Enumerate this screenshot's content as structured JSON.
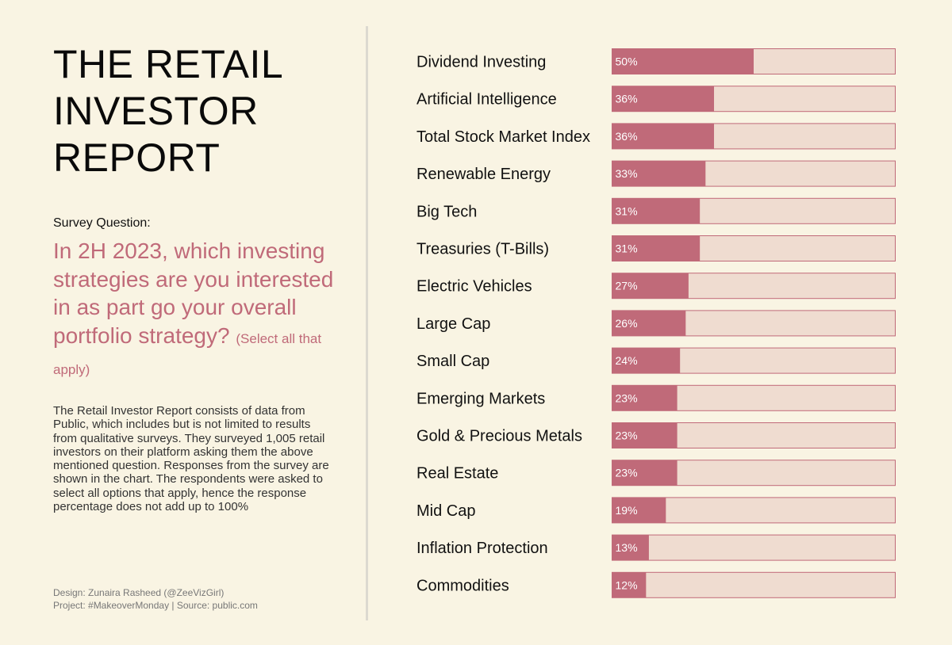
{
  "header": {
    "title_lines": [
      "THE RETAIL",
      "INVESTOR",
      "REPORT"
    ]
  },
  "survey": {
    "label": "Survey Question:",
    "question": "In 2H 2023, which investing strategies are you interested in as part go your overall portfolio strategy?",
    "note": "(Select all that apply)"
  },
  "description": "The Retail Investor Report consists of data from Public, which includes but is not limited to results from qualitative surveys. They surveyed 1,005 retail investors on their platform asking them the above mentioned question. Responses from the survey are shown in the chart. The respondents were asked to select all options that apply, hence the response percentage does not add up to 100%",
  "credits": {
    "design": "Design: Zunaira Rasheed (@ZeeVizGirl)",
    "project": "Project: #MakeoverMonday | Source: public.com"
  },
  "colors": {
    "bar_fill": "#c06a79",
    "bar_track": "#efdcd0",
    "bar_border": "#c06a79",
    "question_text": "#c06a79"
  },
  "chart_data": {
    "type": "bar",
    "orientation": "horizontal",
    "categories": [
      "Dividend Investing",
      "Artificial Intelligence",
      "Total Stock Market Index",
      "Renewable Energy",
      "Big Tech",
      "Treasuries (T-Bills)",
      "Electric Vehicles",
      "Large Cap",
      "Small Cap",
      "Emerging Markets",
      "Gold & Precious Metals",
      "Real Estate",
      "Mid Cap",
      "Inflation Protection",
      "Commodities"
    ],
    "values": [
      50,
      36,
      36,
      33,
      31,
      31,
      27,
      26,
      24,
      23,
      23,
      23,
      19,
      13,
      12
    ],
    "value_labels": [
      "50%",
      "36%",
      "36%",
      "33%",
      "31%",
      "31%",
      "27%",
      "26%",
      "24%",
      "23%",
      "23%",
      "23%",
      "19%",
      "13%",
      "12%"
    ],
    "xlim": [
      0,
      100
    ],
    "grid": false,
    "legend": "none"
  }
}
